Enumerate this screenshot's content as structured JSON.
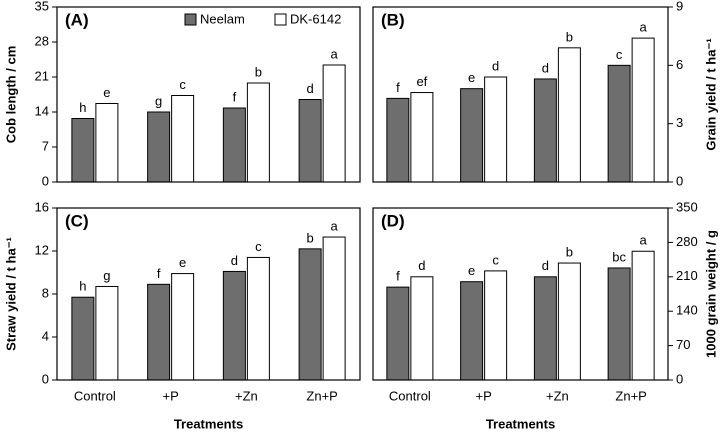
{
  "chart_data": [
    {
      "type": "bar",
      "panel": "(A)",
      "ylabel": "Cob length / cm",
      "y_axis_side": "left",
      "ylim": [
        0,
        35
      ],
      "yticks": [
        0,
        7,
        14,
        21,
        28,
        35
      ],
      "series": [
        {
          "name": "Neelam",
          "color": "#6e6e6e",
          "values": [
            12.7,
            14.0,
            14.8,
            16.5
          ],
          "letters": [
            "h",
            "g",
            "f",
            "d"
          ]
        },
        {
          "name": "DK-6142",
          "color": "#ffffff",
          "values": [
            15.7,
            17.3,
            19.8,
            23.4
          ],
          "letters": [
            "e",
            "c",
            "b",
            "a"
          ]
        }
      ]
    },
    {
      "type": "bar",
      "panel": "(B)",
      "ylabel": "Grain yield / t ha⁻¹",
      "y_axis_side": "right",
      "ylim": [
        0,
        9
      ],
      "yticks": [
        0,
        3,
        6,
        9
      ],
      "series": [
        {
          "color": "#6e6e6e",
          "values": [
            4.3,
            4.8,
            5.3,
            6.0
          ],
          "letters": [
            "f",
            "e",
            "d",
            "c"
          ]
        },
        {
          "color": "#ffffff",
          "values": [
            4.6,
            5.4,
            6.9,
            7.4
          ],
          "letters": [
            "ef",
            "d",
            "b",
            "a"
          ]
        }
      ]
    },
    {
      "type": "bar",
      "panel": "(C)",
      "ylabel": "Straw yield / t ha⁻¹",
      "y_axis_side": "left",
      "xlabel": "Treatments",
      "categories": [
        "Control",
        "+P",
        "+Zn",
        "Zn+P"
      ],
      "ylim": [
        0,
        16
      ],
      "yticks": [
        0,
        4,
        8,
        12,
        16
      ],
      "series": [
        {
          "color": "#6e6e6e",
          "values": [
            7.7,
            8.9,
            10.1,
            12.2
          ],
          "letters": [
            "h",
            "f",
            "d",
            "b"
          ]
        },
        {
          "color": "#ffffff",
          "values": [
            8.7,
            9.9,
            11.4,
            13.3
          ],
          "letters": [
            "g",
            "e",
            "c",
            "a"
          ]
        }
      ]
    },
    {
      "type": "bar",
      "panel": "(D)",
      "ylabel": "1000 grain weight / g",
      "y_axis_side": "right",
      "xlabel": "Treatments",
      "categories": [
        "Control",
        "+P",
        "+Zn",
        "Zn+P"
      ],
      "ylim": [
        0,
        350
      ],
      "yticks": [
        0,
        70,
        140,
        210,
        280,
        350
      ],
      "series": [
        {
          "color": "#6e6e6e",
          "values": [
            189,
            200,
            210,
            228
          ],
          "letters": [
            "f",
            "e",
            "d",
            "bc"
          ]
        },
        {
          "color": "#ffffff",
          "values": [
            210,
            222,
            238,
            262
          ],
          "letters": [
            "d",
            "c",
            "b",
            "a"
          ]
        }
      ]
    }
  ]
}
